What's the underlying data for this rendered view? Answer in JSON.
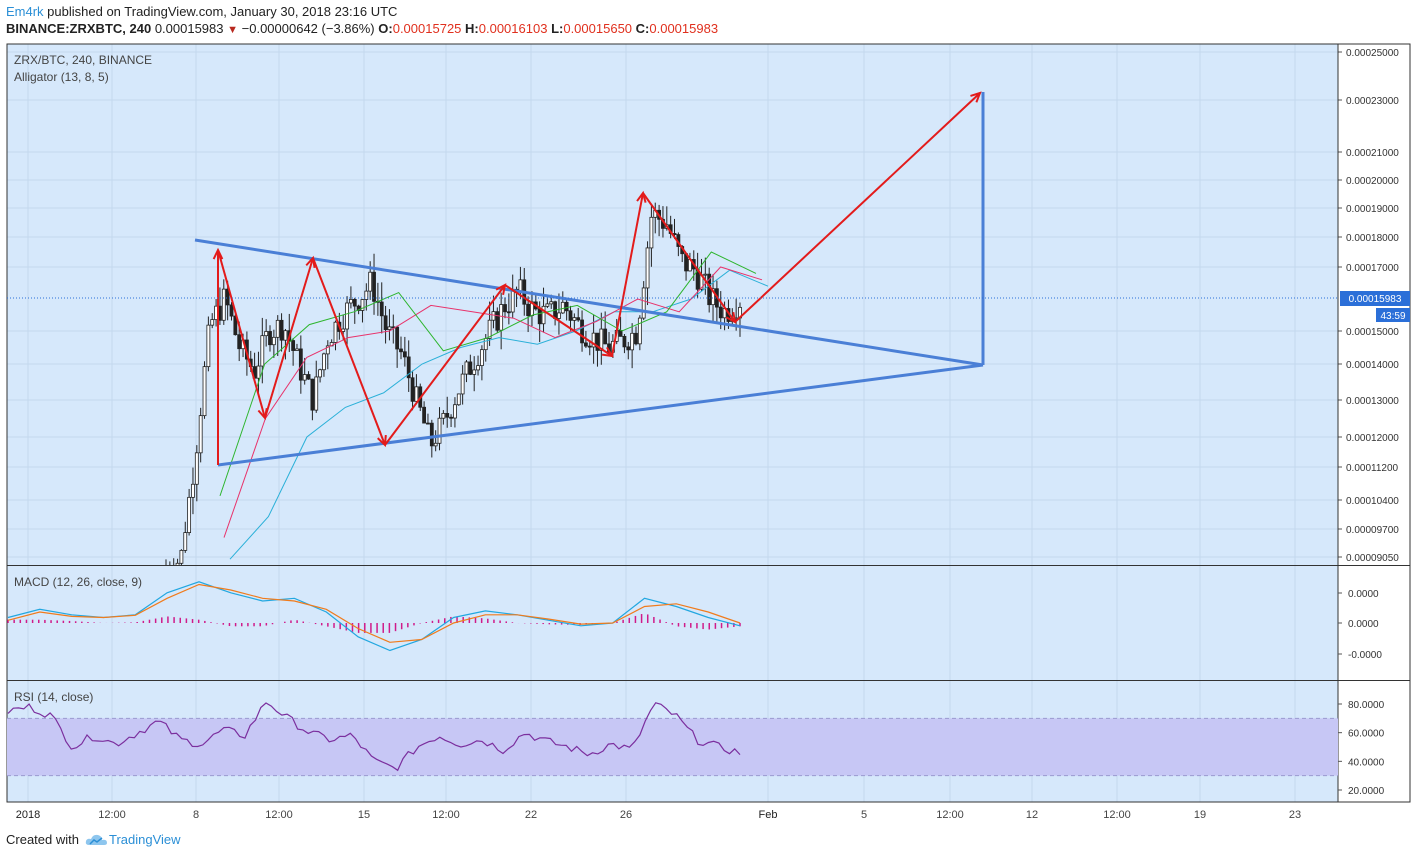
{
  "header": {
    "author": "Em4rk",
    "published": " published on TradingView.com, January 30, 2018 23:16 UTC",
    "symbol": "BINANCE:ZRXBTC, 240",
    "last": "0.00015983",
    "change": "−0.00000642 (−3.86%)",
    "o_label": "O:",
    "o_value": "0.00015725",
    "h_label": "H:",
    "h_value": "0.00016103",
    "l_label": "L:",
    "l_value": "0.00015650",
    "c_label": "C:",
    "c_value": "0.00015983"
  },
  "footer": {
    "created_with": "Created with",
    "brand": "TradingView"
  },
  "colors": {
    "panel_bg": "#d6e8fb",
    "price_line": "#2b6fd8",
    "trend_line": "#4a7fd6",
    "arrow": "#e31b1b",
    "macd": "#22a7e0",
    "signal": "#f07b1c",
    "hist": "#d01b8a",
    "rsi": "#7b2f9e",
    "rsi_band": "#c7c7f5",
    "jaw": "#2ab0d8",
    "teeth": "#e8336b",
    "lips": "#2db52d"
  },
  "chart_data": [
    {
      "type": "candlestick",
      "panel": "price",
      "legend": [
        "ZRX/BTC, 240, BINANCE",
        "Alligator (13, 8, 5)"
      ],
      "y_axis_ticks": [
        "0.00025000",
        "0.00023000",
        "0.00021000",
        "0.00020000",
        "0.00019000",
        "0.00018000",
        "0.00017000",
        "0.00015000",
        "0.00014000",
        "0.00013000",
        "0.00012000",
        "0.00011200",
        "0.00010400",
        "0.00009700",
        "0.00009050"
      ],
      "last_price_label": "0.00015983",
      "countdown_label": "43:59",
      "x_axis_ticks": [
        "2018",
        "12:00",
        "8",
        "12:00",
        "15",
        "12:00",
        "22",
        "26",
        "Feb",
        "5",
        "12:00",
        "12",
        "12:00",
        "19",
        "23"
      ],
      "series": [
        {
          "name": "Close",
          "approx_values": [
            8.8e-05,
            9e-05,
            0.000115,
            0.000152,
            0.00016,
            0.000145,
            0.000138,
            0.00015,
            0.000152,
            0.00014,
            0.00013,
            0.000148,
            0.000155,
            0.00016,
            0.000165,
            0.00015,
            0.000143,
            0.00013,
            0.000118,
            0.000125,
            0.000134,
            0.000142,
            0.00015,
            0.000158,
            0.000162,
            0.000156,
            0.000155,
            0.000158,
            0.000152,
            0.000148,
            0.000145,
            0.000147,
            0.00015,
            0.000188,
            0.000185,
            0.000172,
            0.000169,
            0.00016,
            0.000156,
            0.0001598
          ]
        },
        {
          "name": "Alligator Jaw",
          "approx_values": [
            9e-05,
            0.0001,
            0.00012,
            0.000128,
            0.000132,
            0.00014,
            0.000145,
            0.000148,
            0.000146,
            0.00015,
            0.000156,
            0.000156,
            0.00016,
            0.000169,
            0.000164
          ]
        },
        {
          "name": "Alligator Teeth",
          "approx_values": [
            9.5e-05,
            0.000125,
            0.000142,
            0.000148,
            0.00015,
            0.000158,
            0.000156,
            0.000154,
            0.000148,
            0.000153,
            0.00016,
            0.000156,
            0.00017,
            0.000166
          ]
        },
        {
          "name": "Alligator Lips",
          "approx_values": [
            0.000105,
            0.00014,
            0.000152,
            0.000156,
            0.000162,
            0.000144,
            0.000148,
            0.000155,
            0.000158,
            0.00015,
            0.000156,
            0.000175,
            0.000168
          ]
        }
      ]
    },
    {
      "type": "line",
      "panel": "macd",
      "legend": "MACD (12, 26, close, 9)",
      "y_axis_ticks": [
        "0.0000",
        "0.0000",
        "-0.0000"
      ],
      "series": [
        {
          "name": "MACD",
          "approx_values": [
            0.1,
            0.25,
            0.15,
            0.1,
            0.15,
            0.55,
            0.75,
            0.55,
            0.4,
            0.45,
            0.2,
            -0.25,
            -0.5,
            -0.3,
            0.1,
            0.22,
            0.15,
            0.05,
            -0.05,
            0.0,
            0.45,
            0.3,
            0.1,
            -0.05
          ]
        },
        {
          "name": "Signal",
          "approx_values": [
            0.05,
            0.2,
            0.12,
            0.1,
            0.14,
            0.45,
            0.7,
            0.6,
            0.45,
            0.4,
            0.25,
            -0.1,
            -0.35,
            -0.3,
            0.0,
            0.15,
            0.15,
            0.07,
            -0.02,
            0.0,
            0.3,
            0.35,
            0.2,
            0.0
          ]
        }
      ]
    },
    {
      "type": "line",
      "panel": "rsi",
      "legend": "RSI (14, close)",
      "y_axis_ticks": [
        "80.0000",
        "60.0000",
        "40.0000",
        "20.0000"
      ],
      "band": [
        30,
        70
      ],
      "series": [
        {
          "name": "RSI",
          "approx_values": [
            75,
            78,
            72,
            50,
            58,
            52,
            60,
            68,
            55,
            52,
            62,
            58,
            82,
            70,
            60,
            55,
            58,
            40,
            35,
            50,
            58,
            52,
            55,
            48,
            60,
            54,
            50,
            45,
            52,
            48,
            80,
            72,
            55,
            50,
            46
          ]
        }
      ]
    }
  ],
  "annotations": {
    "arrows": "zigzag wave arrows and breakout target arrow",
    "triangle": "symmetrical triangle with measured move"
  }
}
